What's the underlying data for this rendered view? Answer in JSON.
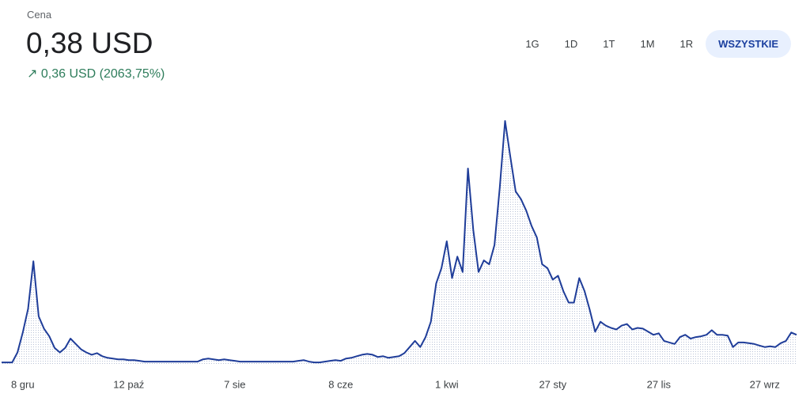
{
  "header": {
    "label": "Cena",
    "price": "0,38 USD",
    "change": "↗ 0,36 USD (2063,75%)"
  },
  "ranges": {
    "items": [
      "1G",
      "1D",
      "1T",
      "1M",
      "1R",
      "WSZYSTKIE"
    ],
    "selected": 5
  },
  "chart_data": {
    "type": "line",
    "color": "#1f3d99",
    "fill": "#b9c2d6",
    "categories": [
      null,
      null,
      null,
      null,
      "8 gru",
      null,
      null,
      null,
      null,
      null,
      null,
      null,
      null,
      null,
      null,
      null,
      null,
      null,
      null,
      null,
      null,
      null,
      null,
      null,
      "12 paź",
      null,
      null,
      null,
      null,
      null,
      null,
      null,
      null,
      null,
      null,
      null,
      null,
      null,
      null,
      null,
      null,
      null,
      null,
      null,
      "7 sie",
      null,
      null,
      null,
      null,
      null,
      null,
      null,
      null,
      null,
      null,
      null,
      null,
      null,
      null,
      null,
      null,
      null,
      null,
      null,
      "8 cze",
      null,
      null,
      null,
      null,
      null,
      null,
      null,
      null,
      null,
      null,
      null,
      null,
      null,
      null,
      null,
      null,
      null,
      null,
      null,
      "1 kwi",
      null,
      null,
      null,
      null,
      null,
      null,
      null,
      null,
      null,
      null,
      null,
      null,
      null,
      null,
      null,
      null,
      null,
      null,
      null,
      "27 sty",
      null,
      null,
      null,
      null,
      null,
      null,
      null,
      null,
      null,
      null,
      null,
      null,
      null,
      null,
      null,
      null,
      null,
      null,
      null,
      "27 lis",
      null,
      null,
      null,
      null,
      null,
      null,
      null,
      null,
      null,
      null,
      null,
      null,
      null,
      null,
      null,
      null,
      null,
      null,
      null,
      "27 wrz",
      null,
      null,
      null,
      null,
      null,
      null
    ],
    "values": [
      0.02,
      0.02,
      0.02,
      0.15,
      0.41,
      0.72,
      1.34,
      0.62,
      0.46,
      0.36,
      0.21,
      0.15,
      0.21,
      0.33,
      0.26,
      0.19,
      0.15,
      0.12,
      0.14,
      0.1,
      0.08,
      0.07,
      0.06,
      0.06,
      0.05,
      0.05,
      0.04,
      0.03,
      0.03,
      0.03,
      0.03,
      0.03,
      0.03,
      0.03,
      0.03,
      0.03,
      0.03,
      0.03,
      0.06,
      0.07,
      0.06,
      0.05,
      0.06,
      0.05,
      0.04,
      0.03,
      0.03,
      0.03,
      0.03,
      0.03,
      0.03,
      0.03,
      0.03,
      0.03,
      0.03,
      0.03,
      0.04,
      0.05,
      0.03,
      0.02,
      0.02,
      0.03,
      0.04,
      0.05,
      0.04,
      0.07,
      0.08,
      0.1,
      0.12,
      0.13,
      0.12,
      0.09,
      0.1,
      0.08,
      0.09,
      0.1,
      0.14,
      0.22,
      0.3,
      0.22,
      0.35,
      0.55,
      1.05,
      1.25,
      1.6,
      1.12,
      1.4,
      1.2,
      2.55,
      1.75,
      1.2,
      1.35,
      1.3,
      1.55,
      2.3,
      3.17,
      2.7,
      2.25,
      2.15,
      2.0,
      1.8,
      1.65,
      1.3,
      1.25,
      1.1,
      1.15,
      0.95,
      0.8,
      0.8,
      1.12,
      0.95,
      0.7,
      0.42,
      0.55,
      0.5,
      0.47,
      0.45,
      0.5,
      0.52,
      0.45,
      0.47,
      0.46,
      0.42,
      0.38,
      0.4,
      0.3,
      0.28,
      0.26,
      0.35,
      0.38,
      0.33,
      0.35,
      0.36,
      0.38,
      0.44,
      0.38,
      0.38,
      0.37,
      0.22,
      0.28,
      0.28,
      0.27,
      0.26,
      0.24,
      0.22,
      0.23,
      0.22,
      0.27,
      0.3,
      0.41,
      0.38
    ],
    "ylim": [
      0,
      3.2
    ]
  }
}
